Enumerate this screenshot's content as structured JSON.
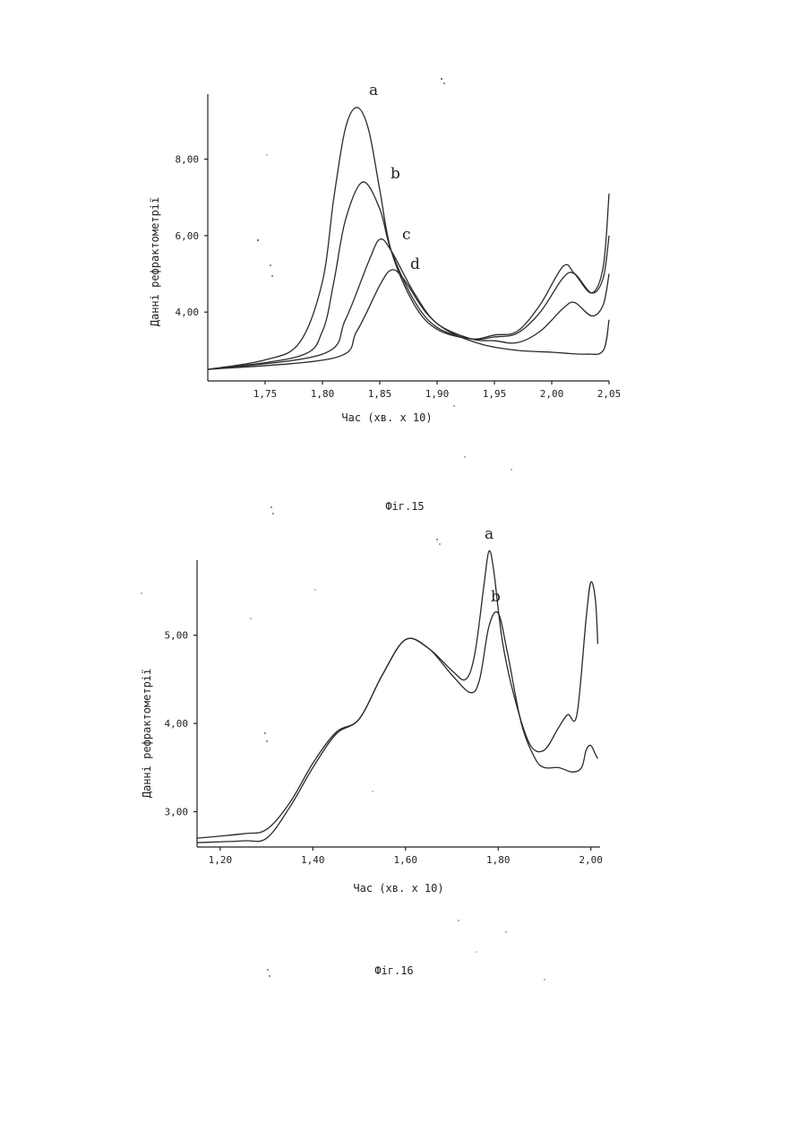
{
  "page": {
    "background": "#ffffff",
    "ink": "#2a2a2a"
  },
  "chart_data": [
    {
      "type": "line",
      "caption": "Фіг.15",
      "xlabel": "Час (хв. x 10)",
      "ylabel": "Данні рефрактометрії",
      "xlim": [
        1.7,
        2.05
      ],
      "ylim": [
        2.2,
        9.7
      ],
      "x_ticks": [
        {
          "value": 1.75,
          "label": "1,75"
        },
        {
          "value": 1.8,
          "label": "1,80"
        },
        {
          "value": 1.85,
          "label": "1,85"
        },
        {
          "value": 1.9,
          "label": "1,90"
        },
        {
          "value": 1.95,
          "label": "1,95"
        },
        {
          "value": 2.0,
          "label": "2,00"
        },
        {
          "value": 2.05,
          "label": "2,05"
        }
      ],
      "y_ticks": [
        {
          "value": 4.0,
          "label": "4,00"
        },
        {
          "value": 6.0,
          "label": "6,00"
        },
        {
          "value": 8.0,
          "label": "8,00"
        }
      ],
      "grid": false,
      "series": [
        {
          "name": "a",
          "points": [
            [
              1.7,
              2.5
            ],
            [
              1.75,
              2.75
            ],
            [
              1.78,
              3.2
            ],
            [
              1.8,
              4.8
            ],
            [
              1.81,
              7.0
            ],
            [
              1.82,
              8.8
            ],
            [
              1.83,
              9.35
            ],
            [
              1.84,
              8.8
            ],
            [
              1.85,
              7.2
            ],
            [
              1.86,
              5.6
            ],
            [
              1.88,
              4.2
            ],
            [
              1.9,
              3.55
            ],
            [
              1.93,
              3.3
            ],
            [
              1.95,
              3.4
            ],
            [
              1.97,
              3.5
            ],
            [
              1.99,
              4.2
            ],
            [
              2.01,
              5.2
            ],
            [
              2.02,
              5.0
            ],
            [
              2.035,
              4.5
            ],
            [
              2.045,
              5.2
            ],
            [
              2.05,
              7.1
            ]
          ]
        },
        {
          "name": "b",
          "points": [
            [
              1.7,
              2.5
            ],
            [
              1.78,
              2.85
            ],
            [
              1.8,
              3.5
            ],
            [
              1.81,
              4.8
            ],
            [
              1.82,
              6.4
            ],
            [
              1.835,
              7.4
            ],
            [
              1.85,
              6.7
            ],
            [
              1.86,
              5.6
            ],
            [
              1.88,
              4.3
            ],
            [
              1.9,
              3.6
            ],
            [
              1.93,
              3.3
            ],
            [
              1.95,
              3.35
            ],
            [
              1.97,
              3.45
            ],
            [
              1.99,
              4.0
            ],
            [
              2.01,
              4.9
            ],
            [
              2.02,
              5.0
            ],
            [
              2.035,
              4.5
            ],
            [
              2.045,
              4.9
            ],
            [
              2.05,
              6.0
            ]
          ]
        },
        {
          "name": "c",
          "points": [
            [
              1.7,
              2.5
            ],
            [
              1.8,
              2.9
            ],
            [
              1.82,
              3.8
            ],
            [
              1.84,
              5.3
            ],
            [
              1.85,
              5.9
            ],
            [
              1.86,
              5.6
            ],
            [
              1.88,
              4.5
            ],
            [
              1.9,
              3.7
            ],
            [
              1.93,
              3.3
            ],
            [
              1.95,
              3.25
            ],
            [
              1.97,
              3.2
            ],
            [
              1.99,
              3.5
            ],
            [
              2.01,
              4.1
            ],
            [
              2.02,
              4.25
            ],
            [
              2.035,
              3.9
            ],
            [
              2.045,
              4.2
            ],
            [
              2.05,
              5.0
            ]
          ]
        },
        {
          "name": "d",
          "points": [
            [
              1.7,
              2.5
            ],
            [
              1.81,
              2.8
            ],
            [
              1.83,
              3.5
            ],
            [
              1.85,
              4.7
            ],
            [
              1.86,
              5.1
            ],
            [
              1.87,
              4.9
            ],
            [
              1.89,
              4.0
            ],
            [
              1.91,
              3.5
            ],
            [
              1.94,
              3.15
            ],
            [
              1.97,
              3.0
            ],
            [
              2.0,
              2.95
            ],
            [
              2.03,
              2.9
            ],
            [
              2.045,
              3.0
            ],
            [
              2.05,
              3.8
            ]
          ]
        }
      ]
    },
    {
      "type": "line",
      "caption": "Фіг.16",
      "xlabel": "Час (хв. x 10)",
      "ylabel": "Данні рефрактометрії",
      "xlim": [
        1.15,
        2.02
      ],
      "ylim": [
        2.6,
        5.85
      ],
      "x_ticks": [
        {
          "value": 1.2,
          "label": "1,20"
        },
        {
          "value": 1.4,
          "label": "1,40"
        },
        {
          "value": 1.6,
          "label": "1,60"
        },
        {
          "value": 1.8,
          "label": "1,80"
        },
        {
          "value": 2.0,
          "label": "2,00"
        }
      ],
      "y_ticks": [
        {
          "value": 3.0,
          "label": "3,00"
        },
        {
          "value": 4.0,
          "label": "4,00"
        },
        {
          "value": 5.0,
          "label": "5,00"
        }
      ],
      "grid": false,
      "series": [
        {
          "name": "a",
          "points": [
            [
              1.15,
              2.7
            ],
            [
              1.25,
              2.75
            ],
            [
              1.3,
              2.8
            ],
            [
              1.35,
              3.1
            ],
            [
              1.4,
              3.55
            ],
            [
              1.45,
              3.9
            ],
            [
              1.5,
              4.05
            ],
            [
              1.55,
              4.55
            ],
            [
              1.6,
              4.95
            ],
            [
              1.65,
              4.85
            ],
            [
              1.7,
              4.6
            ],
            [
              1.73,
              4.5
            ],
            [
              1.75,
              4.8
            ],
            [
              1.77,
              5.6
            ],
            [
              1.78,
              5.95
            ],
            [
              1.79,
              5.75
            ],
            [
              1.81,
              4.9
            ],
            [
              1.84,
              4.2
            ],
            [
              1.87,
              3.75
            ],
            [
              1.9,
              3.7
            ],
            [
              1.93,
              3.95
            ],
            [
              1.95,
              4.1
            ],
            [
              1.97,
              4.1
            ],
            [
              1.99,
              5.2
            ],
            [
              2.0,
              5.6
            ],
            [
              2.01,
              5.4
            ],
            [
              2.015,
              4.9
            ]
          ]
        },
        {
          "name": "b",
          "points": [
            [
              1.15,
              2.65
            ],
            [
              1.25,
              2.67
            ],
            [
              1.3,
              2.7
            ],
            [
              1.35,
              3.05
            ],
            [
              1.4,
              3.5
            ],
            [
              1.45,
              3.88
            ],
            [
              1.5,
              4.05
            ],
            [
              1.55,
              4.55
            ],
            [
              1.6,
              4.95
            ],
            [
              1.65,
              4.85
            ],
            [
              1.7,
              4.55
            ],
            [
              1.74,
              4.35
            ],
            [
              1.76,
              4.5
            ],
            [
              1.78,
              5.1
            ],
            [
              1.8,
              5.25
            ],
            [
              1.82,
              4.8
            ],
            [
              1.85,
              4.0
            ],
            [
              1.88,
              3.6
            ],
            [
              1.9,
              3.5
            ],
            [
              1.93,
              3.5
            ],
            [
              1.96,
              3.45
            ],
            [
              1.98,
              3.5
            ],
            [
              1.99,
              3.7
            ],
            [
              2.0,
              3.75
            ],
            [
              2.01,
              3.65
            ],
            [
              2.015,
              3.6
            ]
          ]
        }
      ]
    }
  ]
}
